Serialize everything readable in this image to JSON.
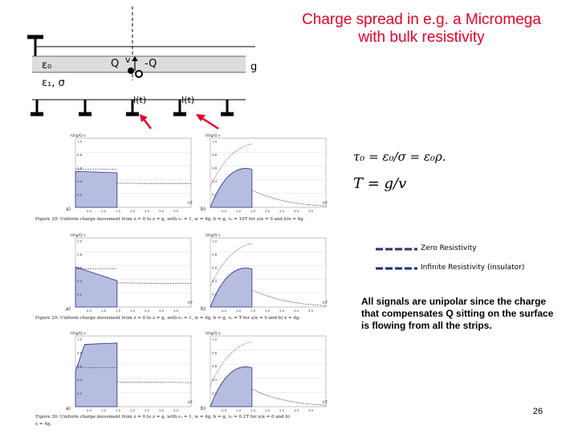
{
  "title_line1": "Charge spread in e.g. a Micromega",
  "title_line2": "with bulk resistivity",
  "labels": {
    "eps0": "ε₀",
    "eps1_sigma": "ε₁, σ",
    "charge_pos": "Q",
    "velocity": "v",
    "charge_neg": "-Q",
    "gap": "g",
    "current_left": "I(t)",
    "current_right": "I(t)"
  },
  "equations": {
    "tau": "τ₀ = ε₀/σ = ε₀ρ.",
    "T": "T = g/v"
  },
  "legend": [
    {
      "label": "Zero Resistivity",
      "color": "#3b2a6e"
    },
    {
      "label": "Infinite Resistivity (insulator)",
      "color": "#1e2a8a"
    }
  ],
  "note": "All signals are unipolar since the charge that compensates Q sitting on the surface is flowing from all the strips.",
  "page_number": "26",
  "figures": [
    {
      "caption": "Figure 29: Uniform charge movement from z = 0 to z = g, with ε₁ = 1, w = 4g, b = g, τ₀ = 10T for a)x = 0 and b)x = 4g."
    },
    {
      "caption": "Figure 29: Uniform charge movement from z = 0 to z = g, with ε₁ = 1, w = 4g, b = g, τ₀ = T for a)x = 0 and b) x = 4g."
    },
    {
      "caption": "Figure 30: Uniform charge movement from z = 0 to z = g, with ε₁ = 1, w = 4g, b = g, τ₀ = 0.1T for a)x = 0 and b)"
    },
    {
      "caption": "x = 4g."
    }
  ],
  "plot_axis": {
    "y_label_a": "I(t)g/Q v",
    "y_label_b": "I(t)g/Q v",
    "x_label": "t/T",
    "ticks_x": [
      "0.5",
      "1.0",
      "1.5",
      "2.0",
      "2.5",
      "3.0",
      "3.5"
    ],
    "ticks_y": [
      "0.2",
      "0.4",
      "0.6",
      "0.8",
      "1.0"
    ],
    "panel_a": "a)",
    "panel_b": "b)"
  }
}
